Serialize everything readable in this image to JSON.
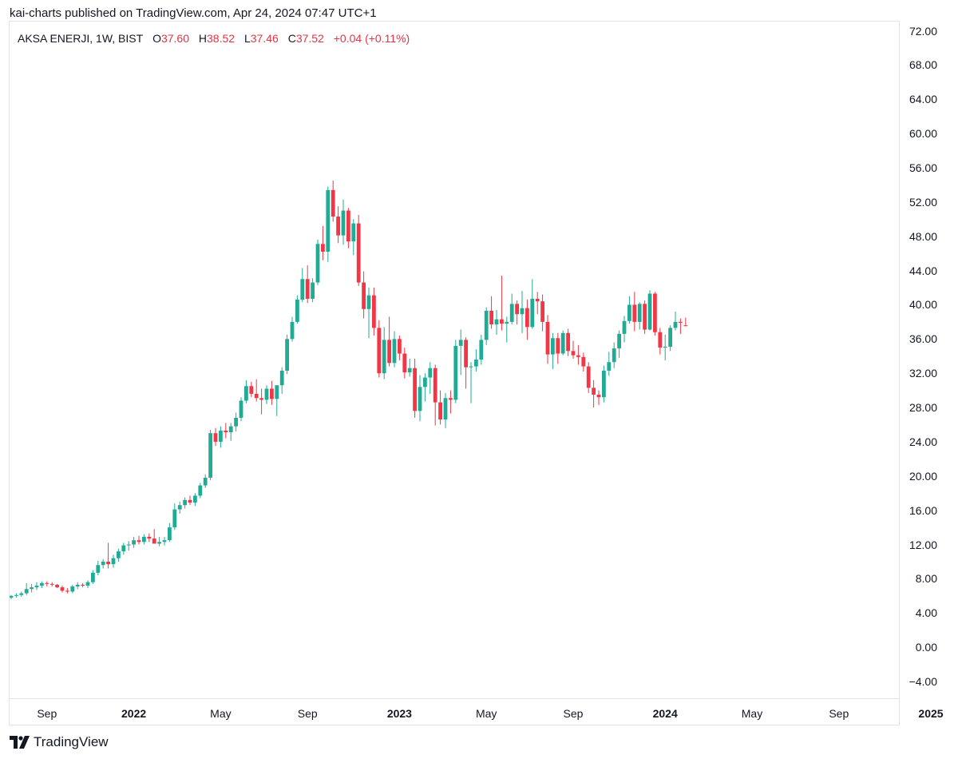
{
  "header": {
    "published": "kai-charts published on TradingView.com, Apr 24, 2024 07:47 UTC+1"
  },
  "legend": {
    "symbol": "AKSA ENERJI, 1W, BIST",
    "o_label": "O",
    "o_value": "37.60",
    "h_label": "H",
    "h_value": "38.52",
    "l_label": "L",
    "l_value": "37.46",
    "c_label": "C",
    "c_value": "37.52",
    "change": "+0.04 (+0.11%)"
  },
  "branding": {
    "name": "TradingView"
  },
  "colors": {
    "up": "#22ab94",
    "down": "#f23645",
    "grid": "#e0e3eb",
    "text": "#131722"
  },
  "chart_data": {
    "type": "candlestick",
    "title": "AKSA ENERJI, 1W, BIST",
    "interval": "1W",
    "ylim": [
      -6,
      72
    ],
    "y_ticks": [
      "72.00",
      "68.00",
      "64.00",
      "60.00",
      "56.00",
      "52.00",
      "48.00",
      "44.00",
      "40.00",
      "36.00",
      "32.00",
      "28.00",
      "24.00",
      "20.00",
      "16.00",
      "12.00",
      "8.00",
      "4.00",
      "0.00",
      "−4.00"
    ],
    "x_ticks": [
      {
        "label": "Sep",
        "week": 7,
        "year": false
      },
      {
        "label": "2022",
        "week": 24,
        "year": true
      },
      {
        "label": "May",
        "week": 41,
        "year": false
      },
      {
        "label": "Sep",
        "week": 58,
        "year": false
      },
      {
        "label": "2023",
        "week": 76,
        "year": true
      },
      {
        "label": "May",
        "week": 93,
        "year": false
      },
      {
        "label": "Sep",
        "week": 110,
        "year": false
      },
      {
        "label": "2024",
        "week": 128,
        "year": true
      },
      {
        "label": "May",
        "week": 145,
        "year": false
      },
      {
        "label": "Sep",
        "week": 162,
        "year": false
      },
      {
        "label": "2025",
        "week": 180,
        "year": true
      }
    ],
    "x_range": [
      0,
      193
    ],
    "candles": [
      [
        5.8,
        6.1,
        5.6,
        6.0
      ],
      [
        6.0,
        6.3,
        5.8,
        6.1
      ],
      [
        6.1,
        6.5,
        5.9,
        6.3
      ],
      [
        6.3,
        7.5,
        6.1,
        6.8
      ],
      [
        6.8,
        7.4,
        6.4,
        7.0
      ],
      [
        7.0,
        7.6,
        6.7,
        7.2
      ],
      [
        7.2,
        7.7,
        6.9,
        7.5
      ],
      [
        7.5,
        7.7,
        7.1,
        7.4
      ],
      [
        7.4,
        7.6,
        7.1,
        7.3
      ],
      [
        7.3,
        7.4,
        6.9,
        7.0
      ],
      [
        7.0,
        7.2,
        6.4,
        6.6
      ],
      [
        6.6,
        6.9,
        6.3,
        6.5
      ],
      [
        6.5,
        7.3,
        6.3,
        7.1
      ],
      [
        7.1,
        7.6,
        6.8,
        7.3
      ],
      [
        7.3,
        7.5,
        7.0,
        7.2
      ],
      [
        7.2,
        7.8,
        6.9,
        7.6
      ],
      [
        7.6,
        9.0,
        7.4,
        8.7
      ],
      [
        8.7,
        10.1,
        8.4,
        9.6
      ],
      [
        9.6,
        10.3,
        9.2,
        10.0
      ],
      [
        10.0,
        12.2,
        9.2,
        9.7
      ],
      [
        9.7,
        10.8,
        9.3,
        10.4
      ],
      [
        10.4,
        11.5,
        10.0,
        11.2
      ],
      [
        11.2,
        12.2,
        10.8,
        11.9
      ],
      [
        11.9,
        12.4,
        11.3,
        12.0
      ],
      [
        12.0,
        12.9,
        11.6,
        12.5
      ],
      [
        12.5,
        13.0,
        12.0,
        12.3
      ],
      [
        12.3,
        13.2,
        12.0,
        12.9
      ],
      [
        12.9,
        13.3,
        12.3,
        12.7
      ],
      [
        12.7,
        13.8,
        12.4,
        12.1
      ],
      [
        12.1,
        12.9,
        11.8,
        12.3
      ],
      [
        12.3,
        12.9,
        11.9,
        12.5
      ],
      [
        12.5,
        14.5,
        12.3,
        14.0
      ],
      [
        14.0,
        16.8,
        13.7,
        16.1
      ],
      [
        16.1,
        17.0,
        15.6,
        16.6
      ],
      [
        16.6,
        17.5,
        16.2,
        17.2
      ],
      [
        17.2,
        17.7,
        16.6,
        16.9
      ],
      [
        16.9,
        18.0,
        16.5,
        17.7
      ],
      [
        17.7,
        19.2,
        17.4,
        18.9
      ],
      [
        18.9,
        20.2,
        18.6,
        19.8
      ],
      [
        19.8,
        25.4,
        19.5,
        25.0
      ],
      [
        25.0,
        25.6,
        23.5,
        24.0
      ],
      [
        24.0,
        25.8,
        23.3,
        25.3
      ],
      [
        25.3,
        26.2,
        24.4,
        25.1
      ],
      [
        25.1,
        26.2,
        24.1,
        25.8
      ],
      [
        25.8,
        27.4,
        25.2,
        26.8
      ],
      [
        26.8,
        29.2,
        26.4,
        28.8
      ],
      [
        28.8,
        31.2,
        28.5,
        30.5
      ],
      [
        30.5,
        31.0,
        29.2,
        29.6
      ],
      [
        29.6,
        31.3,
        28.7,
        29.1
      ],
      [
        29.1,
        30.2,
        27.2,
        28.9
      ],
      [
        28.9,
        30.6,
        28.4,
        30.2
      ],
      [
        30.2,
        31.1,
        28.3,
        29.0
      ],
      [
        29.0,
        30.4,
        27.0,
        30.6
      ],
      [
        30.6,
        32.7,
        29.6,
        32.3
      ],
      [
        32.3,
        36.5,
        31.9,
        36.0
      ],
      [
        36.0,
        38.6,
        35.7,
        38.0
      ],
      [
        38.0,
        41.1,
        37.8,
        40.6
      ],
      [
        40.6,
        44.3,
        40.3,
        43.0
      ],
      [
        43.0,
        44.6,
        40.2,
        40.7
      ],
      [
        40.7,
        43.1,
        40.3,
        42.6
      ],
      [
        42.6,
        47.6,
        42.3,
        47.1
      ],
      [
        47.1,
        49.2,
        45.2,
        46.2
      ],
      [
        46.2,
        53.8,
        45.0,
        53.4
      ],
      [
        53.4,
        54.5,
        49.7,
        50.3
      ],
      [
        50.3,
        51.5,
        47.2,
        48.1
      ],
      [
        48.1,
        52.3,
        47.0,
        51.0
      ],
      [
        51.0,
        51.3,
        46.6,
        47.4
      ],
      [
        47.4,
        50.0,
        45.8,
        49.5
      ],
      [
        49.5,
        50.5,
        42.2,
        42.6
      ],
      [
        42.6,
        43.9,
        38.4,
        39.5
      ],
      [
        39.5,
        42.0,
        36.1,
        41.1
      ],
      [
        41.1,
        42.0,
        36.4,
        37.3
      ],
      [
        37.3,
        38.2,
        31.5,
        32.0
      ],
      [
        32.0,
        37.4,
        31.3,
        35.9
      ],
      [
        35.9,
        38.6,
        32.8,
        33.2
      ],
      [
        33.2,
        36.9,
        32.7,
        36.0
      ],
      [
        36.0,
        36.4,
        33.5,
        34.3
      ],
      [
        34.3,
        35.0,
        31.4,
        32.1
      ],
      [
        32.1,
        33.7,
        31.6,
        32.6
      ],
      [
        32.6,
        33.7,
        26.8,
        27.6
      ],
      [
        27.6,
        31.8,
        26.4,
        30.4
      ],
      [
        30.4,
        32.0,
        28.7,
        31.5
      ],
      [
        31.5,
        33.3,
        29.6,
        32.6
      ],
      [
        32.6,
        33.0,
        25.9,
        28.6
      ],
      [
        28.6,
        30.0,
        26.0,
        26.6
      ],
      [
        26.6,
        29.7,
        25.6,
        29.1
      ],
      [
        29.1,
        30.0,
        27.3,
        28.9
      ],
      [
        28.9,
        35.9,
        28.5,
        35.2
      ],
      [
        35.2,
        37.1,
        31.8,
        35.9
      ],
      [
        35.9,
        36.2,
        30.2,
        32.7
      ],
      [
        32.7,
        33.3,
        28.5,
        32.8
      ],
      [
        32.8,
        34.8,
        32.2,
        33.6
      ],
      [
        33.6,
        36.5,
        33.0,
        35.9
      ],
      [
        35.9,
        39.7,
        35.3,
        39.3
      ],
      [
        39.3,
        41.0,
        37.2,
        37.7
      ],
      [
        37.7,
        39.4,
        36.5,
        38.3
      ],
      [
        38.3,
        43.4,
        37.0,
        37.8
      ],
      [
        37.8,
        38.6,
        35.6,
        38.0
      ],
      [
        38.0,
        41.3,
        37.7,
        40.1
      ],
      [
        40.1,
        40.5,
        37.7,
        38.9
      ],
      [
        38.9,
        41.6,
        36.7,
        39.6
      ],
      [
        39.6,
        40.6,
        35.9,
        37.4
      ],
      [
        37.4,
        43.0,
        37.2,
        40.7
      ],
      [
        40.7,
        41.5,
        38.9,
        40.4
      ],
      [
        40.4,
        41.2,
        36.9,
        38.0
      ],
      [
        38.0,
        38.8,
        33.1,
        34.2
      ],
      [
        34.2,
        36.7,
        32.5,
        36.1
      ],
      [
        36.1,
        36.7,
        33.1,
        34.3
      ],
      [
        34.3,
        37.0,
        34.1,
        36.7
      ],
      [
        36.7,
        37.2,
        34.0,
        34.6
      ],
      [
        34.6,
        35.8,
        33.7,
        34.1
      ],
      [
        34.1,
        35.3,
        33.0,
        33.9
      ],
      [
        33.9,
        34.4,
        32.2,
        32.8
      ],
      [
        32.8,
        33.3,
        29.7,
        30.3
      ],
      [
        30.3,
        31.2,
        28.0,
        29.5
      ],
      [
        29.5,
        30.0,
        28.3,
        29.2
      ],
      [
        29.2,
        32.9,
        28.6,
        32.3
      ],
      [
        32.3,
        34.5,
        31.7,
        33.3
      ],
      [
        33.3,
        35.6,
        32.6,
        34.9
      ],
      [
        34.9,
        37.0,
        33.8,
        36.6
      ],
      [
        36.6,
        38.7,
        35.6,
        38.1
      ],
      [
        38.1,
        41.0,
        37.8,
        40.0
      ],
      [
        40.0,
        41.5,
        36.9,
        38.0
      ],
      [
        38.0,
        40.3,
        37.1,
        40.1
      ],
      [
        40.1,
        40.5,
        36.6,
        37.1
      ],
      [
        37.1,
        41.7,
        37.0,
        41.3
      ],
      [
        41.3,
        41.5,
        36.4,
        36.8
      ],
      [
        36.8,
        37.3,
        34.2,
        35.0
      ],
      [
        35.0,
        36.5,
        33.5,
        35.1
      ],
      [
        35.1,
        37.6,
        34.6,
        37.3
      ],
      [
        37.3,
        39.2,
        37.0,
        38.0
      ],
      [
        38.0,
        38.4,
        36.6,
        37.9
      ],
      [
        37.6,
        38.5,
        37.5,
        37.5
      ]
    ]
  }
}
